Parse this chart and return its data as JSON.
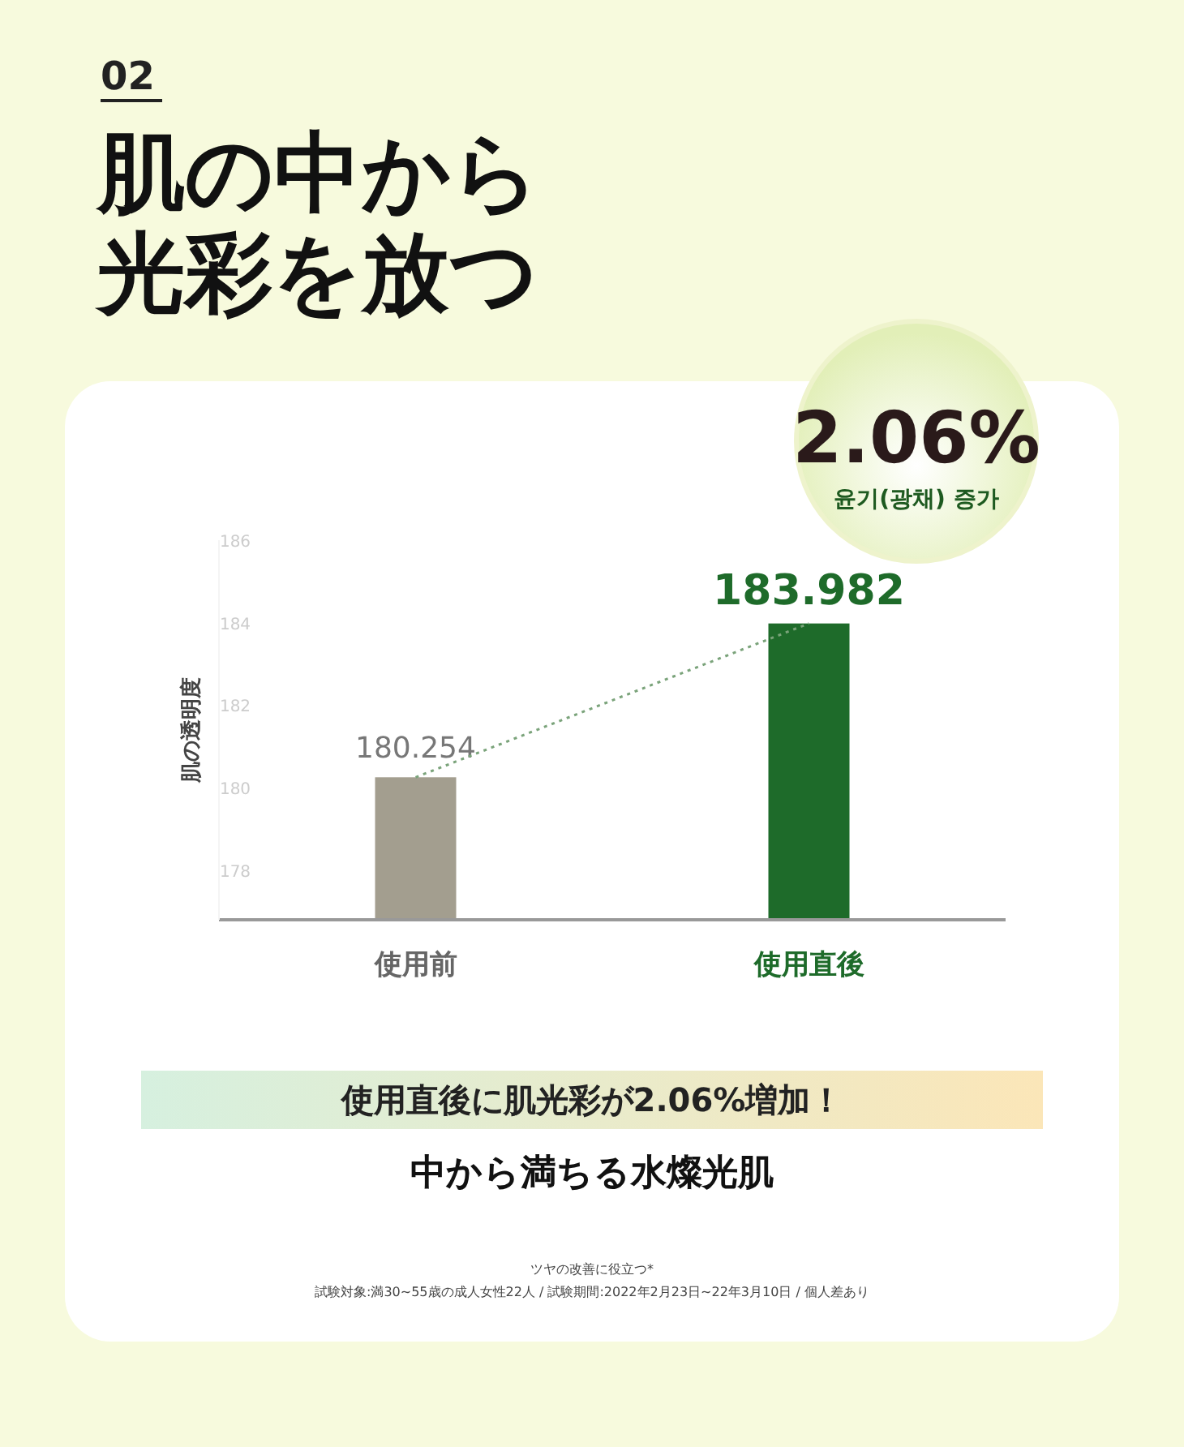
{
  "chart_data": {
    "type": "bar",
    "title": "肌の中から光彩を放つ",
    "subtitle": "02",
    "ylabel": "肌の透明度",
    "categories": [
      "使用前",
      "使用直後"
    ],
    "series": [
      {
        "colors": [
          "#a39e8f",
          "#1e6b2a"
        ],
        "values": [
          180.254,
          183.982
        ],
        "value_labels": [
          "180.254",
          "183.982"
        ]
      },
      {
        "type": "line",
        "color": "#7aa37a",
        "values": [
          180.254,
          183.982
        ],
        "line_style": "dotted"
      }
    ],
    "ylim": [
      176.8,
      186
    ],
    "yticks": [
      178,
      180,
      182,
      184,
      186
    ],
    "annotations": [
      "2.06%",
      "윤기(광채) 증가",
      "使用直後に肌光彩が2.06%増加！",
      "中から満ちる水燦光肌",
      "ツヤの改善に役立つ*",
      "試験対象:満30~55歳の成人女性22人 / 試験期間:2022年2月23日~22年3月10日 / 個人差あり"
    ]
  }
}
